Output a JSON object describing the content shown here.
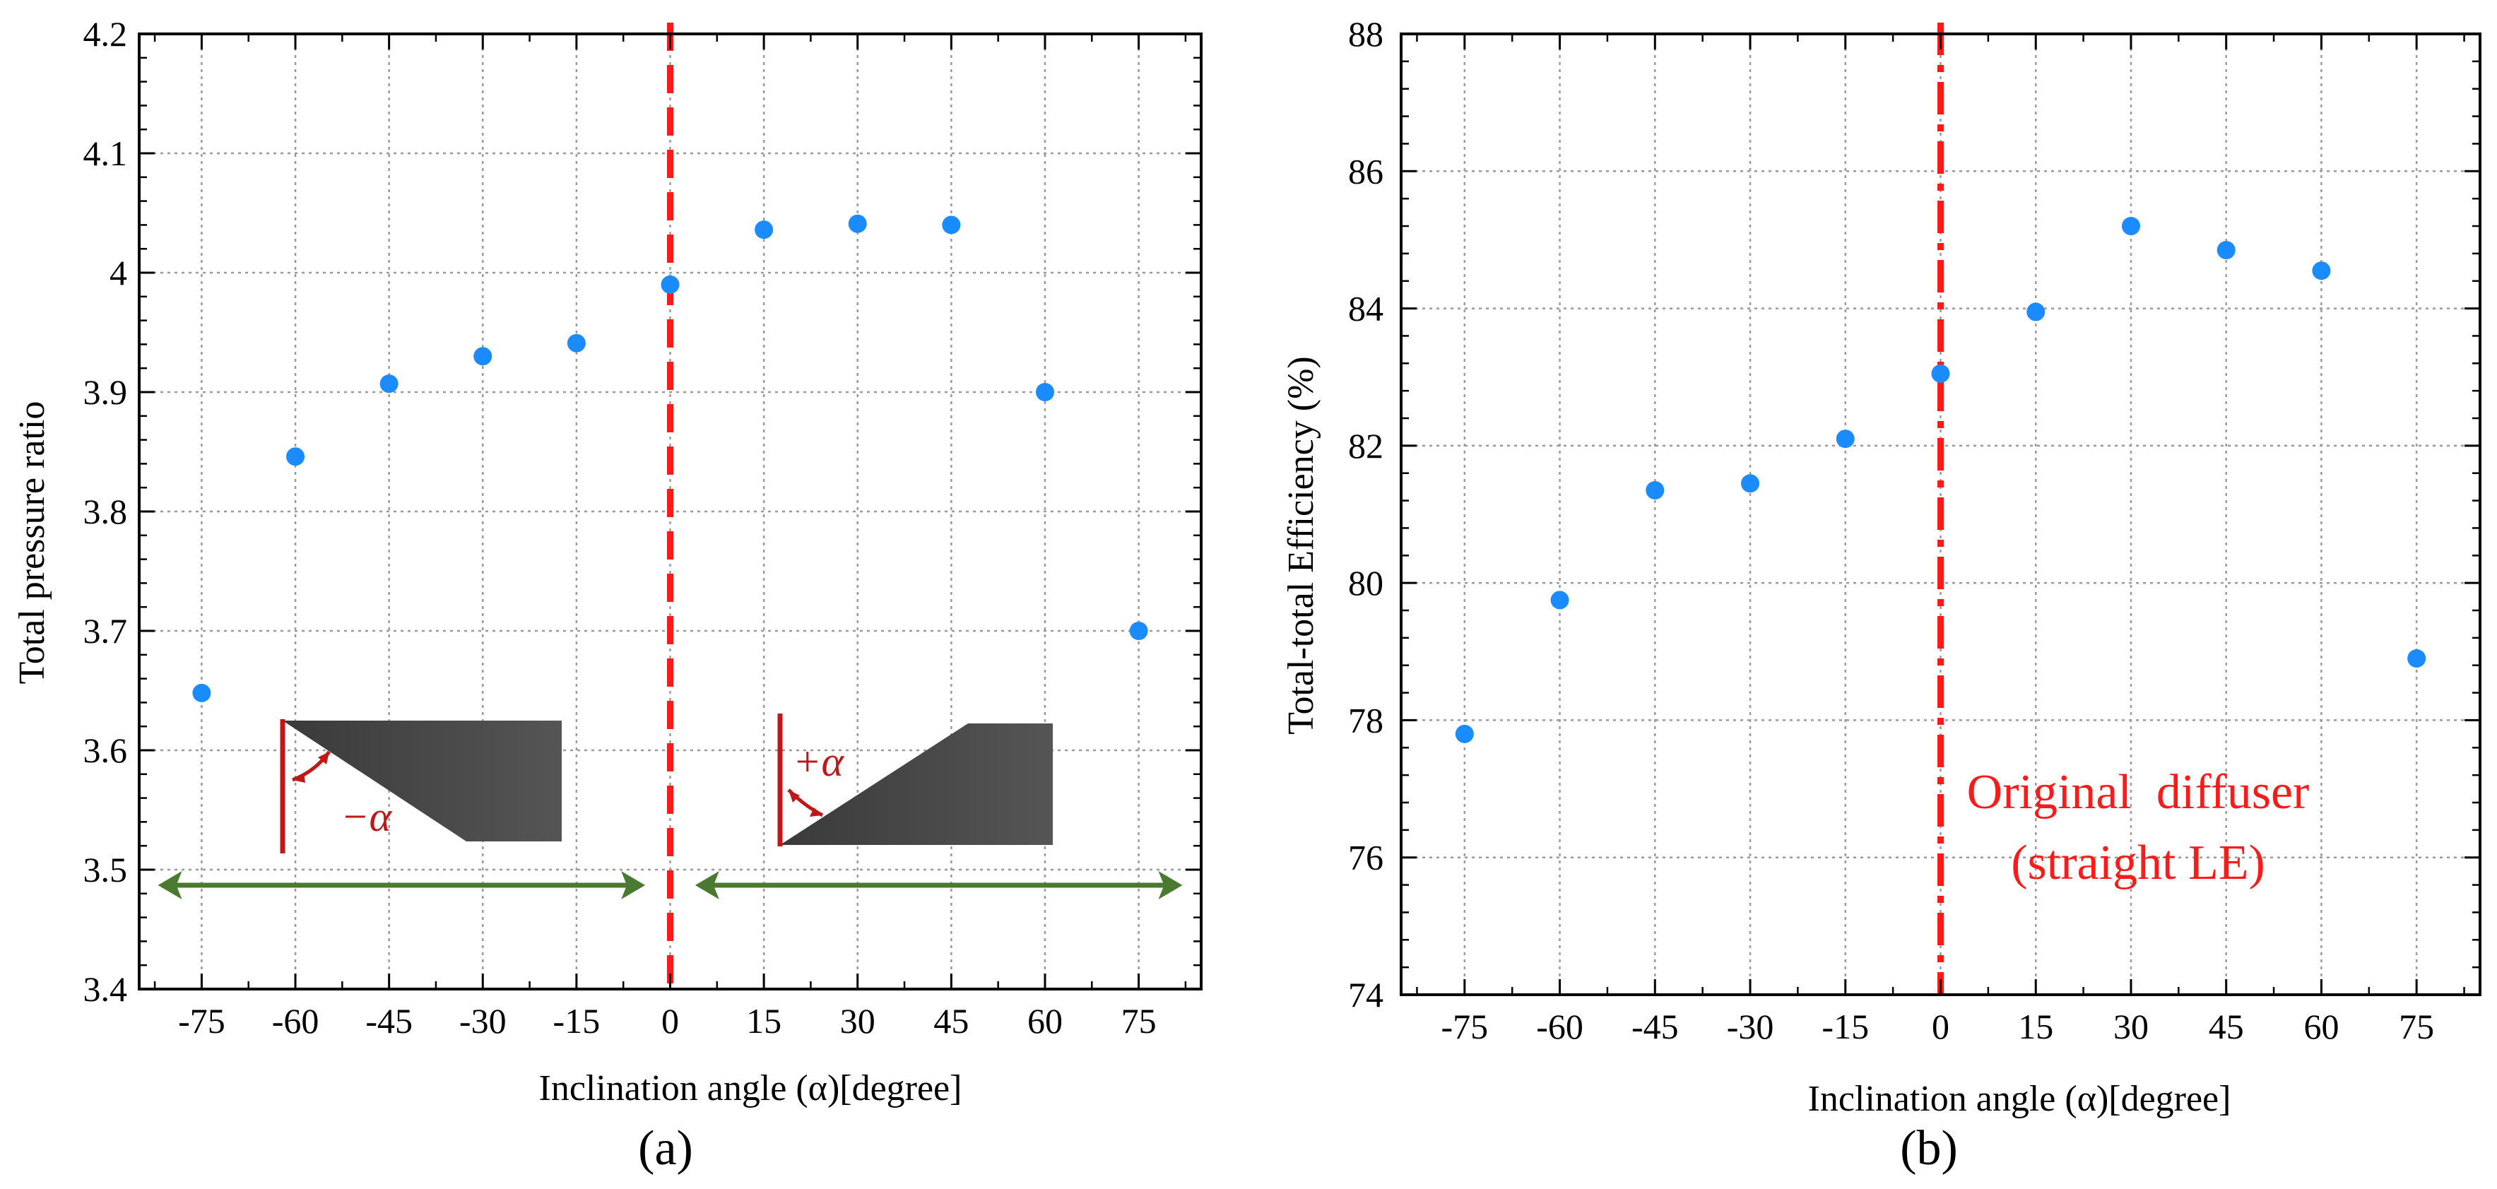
{
  "chart_data": [
    {
      "type": "scatter",
      "panel_label": "(a)",
      "xlabel": "Inclination angle (α)[degree]",
      "ylabel": "Total pressure ratio",
      "xlim": [
        -85,
        85
      ],
      "ylim": [
        3.4,
        4.2
      ],
      "grid": true,
      "x_ticks": [
        "-75",
        "-60",
        "-45",
        "-30",
        "-15",
        "0",
        "15",
        "30",
        "45",
        "60",
        "75"
      ],
      "y_ticks": [
        "3.4",
        "3.5",
        "3.6",
        "3.7",
        "3.8",
        "3.9",
        "4",
        "4.1",
        "4.2"
      ],
      "series": [
        {
          "name": "Total pressure ratio",
          "color": "#1a8cff",
          "x": [
            -75,
            -60,
            -45,
            -30,
            -15,
            0,
            15,
            30,
            45,
            60,
            75
          ],
          "y": [
            3.648,
            3.846,
            3.907,
            3.93,
            3.941,
            3.99,
            4.036,
            4.041,
            4.04,
            3.9,
            3.7
          ]
        }
      ],
      "reference_line": {
        "x": 0,
        "color": "#ff1a1a",
        "style": "dashed"
      },
      "annotations": [
        {
          "type": "range-arrow",
          "from": -82,
          "to": -4,
          "y": 3.487,
          "color": "#4a7a30"
        },
        {
          "type": "range-arrow",
          "from": 4,
          "to": 82,
          "y": 3.487,
          "color": "#4a7a30"
        },
        {
          "type": "blade-schematic",
          "label": "−α",
          "color": "#c01818"
        },
        {
          "type": "blade-schematic",
          "label": "+α",
          "color": "#c01818"
        }
      ]
    },
    {
      "type": "scatter",
      "panel_label": "(b)",
      "xlabel": "Inclination angle (α)[degree]",
      "ylabel": "Total-total Efficiency (%)",
      "xlim": [
        -85,
        85
      ],
      "ylim": [
        74,
        88
      ],
      "grid": true,
      "x_ticks": [
        "-75",
        "-60",
        "-45",
        "-30",
        "-15",
        "0",
        "15",
        "30",
        "45",
        "60",
        "75"
      ],
      "y_ticks": [
        "74",
        "76",
        "78",
        "80",
        "82",
        "84",
        "86",
        "88"
      ],
      "series": [
        {
          "name": "Total-total Efficiency",
          "color": "#1a8cff",
          "x": [
            -75,
            -60,
            -45,
            -30,
            -15,
            0,
            15,
            30,
            45,
            60,
            75
          ],
          "y": [
            77.8,
            79.75,
            81.35,
            81.45,
            82.1,
            83.05,
            83.95,
            85.2,
            84.85,
            84.55,
            78.9
          ]
        }
      ],
      "reference_line": {
        "x": 0,
        "color": "#ff1a1a",
        "style": "dash-dot"
      },
      "annotations": [
        {
          "type": "text",
          "lines": [
            "Original  diffuser",
            "(straight LE)"
          ],
          "color": "#ff1a1a"
        }
      ]
    }
  ]
}
